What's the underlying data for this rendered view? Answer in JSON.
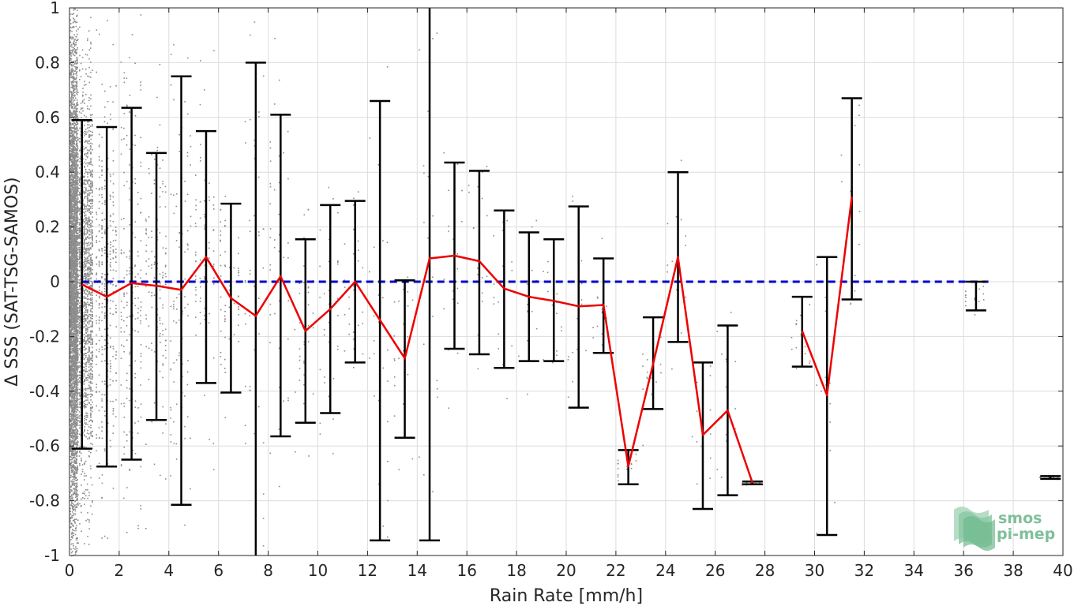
{
  "chart_data": {
    "type": "scatter",
    "xlabel": "Rain Rate [mm/h]",
    "ylabel": "Δ SSS (SAT-TSG-SAMOS)",
    "xlim": [
      0,
      40
    ],
    "ylim": [
      -1,
      1
    ],
    "xticks": [
      0,
      2,
      4,
      6,
      8,
      10,
      12,
      14,
      16,
      18,
      20,
      22,
      24,
      26,
      28,
      30,
      32,
      34,
      36,
      38,
      40
    ],
    "yticks": [
      1,
      0.8,
      0.6,
      0.4,
      0.2,
      0,
      -0.2,
      -0.4,
      -0.6,
      -0.8,
      -1
    ],
    "ytick_labels": [
      "1",
      "0.8",
      "0.6",
      "0.4",
      "0.2",
      "0",
      "-0.2",
      "-0.4",
      "-0.6",
      "-0.8",
      "-1"
    ],
    "grid": true,
    "reference_line": {
      "y": 0,
      "color": "#0000cc",
      "style": "dashed"
    },
    "colors": {
      "points": "#8c8c8c",
      "mean_line": "#ee0000",
      "errorbars": "#000000",
      "zero_line": "#0000cc"
    },
    "series": [
      {
        "kind": "errorbar",
        "bins": [
          {
            "x": 0.5,
            "mean": -0.01,
            "low": -0.61,
            "high": 0.59
          },
          {
            "x": 1.5,
            "mean": -0.055,
            "low": -0.675,
            "high": 0.565
          },
          {
            "x": 2.5,
            "mean": -0.005,
            "low": -0.65,
            "high": 0.635
          },
          {
            "x": 3.5,
            "mean": -0.015,
            "low": -0.505,
            "high": 0.47
          },
          {
            "x": 4.5,
            "mean": -0.03,
            "low": -0.815,
            "high": 0.75
          },
          {
            "x": 5.5,
            "mean": 0.09,
            "low": -0.37,
            "high": 0.55
          },
          {
            "x": 6.5,
            "mean": -0.06,
            "low": -0.405,
            "high": 0.285
          },
          {
            "x": 7.5,
            "mean": -0.125,
            "low": -1.0,
            "high": 0.8
          },
          {
            "x": 8.5,
            "mean": 0.02,
            "low": -0.565,
            "high": 0.61
          },
          {
            "x": 9.5,
            "mean": -0.18,
            "low": -0.515,
            "high": 0.155
          },
          {
            "x": 10.5,
            "mean": -0.1,
            "low": -0.48,
            "high": 0.28
          },
          {
            "x": 11.5,
            "mean": 0.0,
            "low": -0.295,
            "high": 0.295
          },
          {
            "x": 12.5,
            "mean": -0.14,
            "low": -0.945,
            "high": 0.66
          },
          {
            "x": 13.5,
            "mean": -0.28,
            "low": -0.57,
            "high": 0.005
          },
          {
            "x": 14.5,
            "mean": 0.085,
            "low": -0.945,
            "high": 1.0
          },
          {
            "x": 15.5,
            "mean": 0.095,
            "low": -0.245,
            "high": 0.435
          },
          {
            "x": 16.5,
            "mean": 0.075,
            "low": -0.265,
            "high": 0.405
          },
          {
            "x": 17.5,
            "mean": -0.025,
            "low": -0.315,
            "high": 0.26
          },
          {
            "x": 18.5,
            "mean": -0.055,
            "low": -0.29,
            "high": 0.18
          },
          {
            "x": 19.5,
            "mean": -0.07,
            "low": -0.29,
            "high": 0.155
          },
          {
            "x": 20.5,
            "mean": -0.09,
            "low": -0.46,
            "high": 0.275
          },
          {
            "x": 21.5,
            "mean": -0.085,
            "low": -0.26,
            "high": 0.085
          },
          {
            "x": 22.5,
            "mean": -0.675,
            "low": -0.74,
            "high": -0.615
          },
          {
            "x": 23.5,
            "mean": -0.3,
            "low": -0.465,
            "high": -0.13
          },
          {
            "x": 24.5,
            "mean": 0.09,
            "low": -0.22,
            "high": 0.4
          },
          {
            "x": 25.5,
            "mean": -0.56,
            "low": -0.83,
            "high": -0.295
          },
          {
            "x": 26.5,
            "mean": -0.47,
            "low": -0.78,
            "high": -0.16
          },
          {
            "x": 27.5,
            "mean": -0.735,
            "low": -0.74,
            "high": -0.73
          },
          {
            "x": 29.5,
            "mean": -0.18,
            "low": -0.31,
            "high": -0.055
          },
          {
            "x": 30.5,
            "mean": -0.415,
            "low": -0.925,
            "high": 0.09
          },
          {
            "x": 31.5,
            "mean": 0.31,
            "low": -0.065,
            "high": 0.67
          },
          {
            "x": 36.5,
            "mean": -0.05,
            "low": -0.105,
            "high": 0.0
          },
          {
            "x": 39.5,
            "mean": -0.715,
            "low": -0.72,
            "high": -0.71
          }
        ]
      }
    ]
  },
  "logo": {
    "line1": "smos",
    "line2": "pi-mep"
  }
}
